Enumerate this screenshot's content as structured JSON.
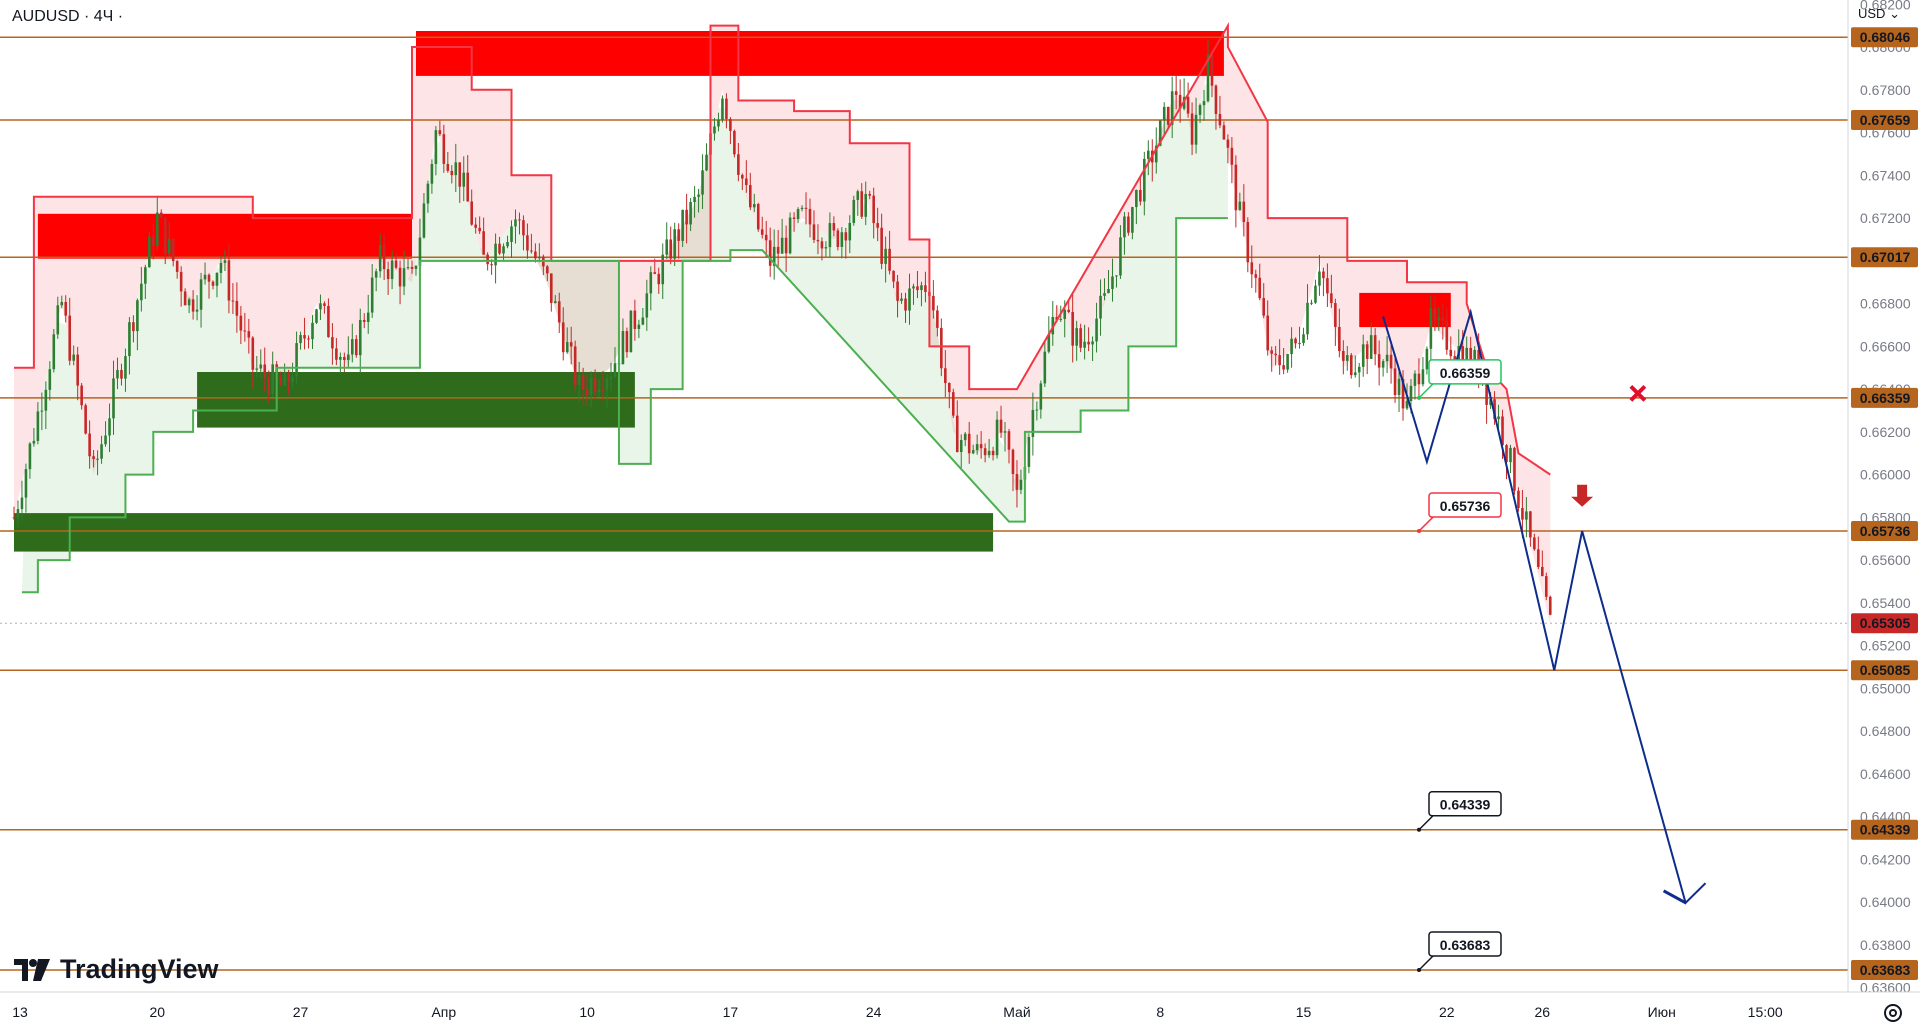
{
  "header": {
    "symbol_label": "AUDUSD · 4Ч ·",
    "currency_label": "USD"
  },
  "brand": {
    "name": "TradingView"
  },
  "colors": {
    "level_line": "#b5651d",
    "level_badge": "#b5651d",
    "supply_zone": "#ff0000",
    "demand_zone": "#2e6b1a",
    "bull_candle": "#2e7d32",
    "bear_candle": "#c62828",
    "trail_red": "#f23645",
    "trail_green": "#4caf50",
    "projection": "#0d2c8c"
  },
  "icons": {
    "settings": "gear-icon",
    "cancel_mark": "x-mark-icon",
    "sell_arrow": "down-arrow-icon"
  },
  "chart_data": {
    "type": "candlestick",
    "title": "",
    "xlabel": "",
    "ylabel": "",
    "ylim": [
      0.6358,
      0.6822
    ],
    "grid": false,
    "current_price": 0.65305,
    "price_ticks": [
      "0.68200",
      "0.68000",
      "0.67800",
      "0.67600",
      "0.67400",
      "0.67200",
      "0.67000",
      "0.66800",
      "0.66600",
      "0.66400",
      "0.66200",
      "0.66000",
      "0.65800",
      "0.65600",
      "0.65400",
      "0.65200",
      "0.65000",
      "0.64800",
      "0.64600",
      "0.64400",
      "0.64200",
      "0.64000",
      "0.63800",
      "0.63600"
    ],
    "time_ticks": [
      {
        "label": "13",
        "bar": 0
      },
      {
        "label": "20",
        "bar": 36
      },
      {
        "label": "27",
        "bar": 72
      },
      {
        "label": "Апр",
        "bar": 108
      },
      {
        "label": "10",
        "bar": 144
      },
      {
        "label": "17",
        "bar": 180
      },
      {
        "label": "24",
        "bar": 216
      },
      {
        "label": "Май",
        "bar": 252
      },
      {
        "label": "8",
        "bar": 288
      },
      {
        "label": "15",
        "bar": 324
      },
      {
        "label": "22",
        "bar": 360
      },
      {
        "label": "26",
        "bar": 384
      },
      {
        "label": "Июн",
        "bar": 414
      },
      {
        "label": "15:00",
        "bar": 440
      }
    ],
    "levels": [
      {
        "label": "0.68046",
        "value": 0.68046
      },
      {
        "label": "0.67659",
        "value": 0.67659
      },
      {
        "label": "0.67017",
        "value": 0.67017
      },
      {
        "label": "0.66359",
        "value": 0.66359
      },
      {
        "label": "0.65736",
        "value": 0.65736
      },
      {
        "label": "0.65085",
        "value": 0.65085
      },
      {
        "label": "0.64339",
        "value": 0.64339
      },
      {
        "label": "0.63683",
        "value": 0.63683
      }
    ],
    "current_label": "0.65305",
    "callouts": [
      {
        "label": "0.66359",
        "value": 0.66359,
        "style": "green"
      },
      {
        "label": "0.65736",
        "value": 0.65736,
        "style": "red"
      },
      {
        "label": "0.64339",
        "value": 0.64339,
        "style": "black"
      },
      {
        "label": "0.63683",
        "value": 0.63683,
        "style": "black"
      }
    ],
    "zones": [
      {
        "kind": "supply",
        "bar_from": 101,
        "bar_to": 304,
        "y_from": 0.67865,
        "y_to": 0.68075
      },
      {
        "kind": "supply",
        "bar_from": 6,
        "bar_to": 100,
        "y_from": 0.6701,
        "y_to": 0.6722
      },
      {
        "kind": "supply",
        "bar_from": 338,
        "bar_to": 361,
        "y_from": 0.6669,
        "y_to": 0.6685
      },
      {
        "kind": "demand",
        "bar_from": 46,
        "bar_to": 156,
        "y_from": 0.6622,
        "y_to": 0.6648
      },
      {
        "kind": "demand",
        "bar_from": 0,
        "bar_to": 246,
        "y_from": 0.6564,
        "y_to": 0.6582
      }
    ],
    "close_anchors": [
      [
        0,
        0.658
      ],
      [
        5,
        0.662
      ],
      [
        12,
        0.668
      ],
      [
        20,
        0.66
      ],
      [
        28,
        0.666
      ],
      [
        36,
        0.672
      ],
      [
        44,
        0.668
      ],
      [
        52,
        0.67
      ],
      [
        60,
        0.665
      ],
      [
        68,
        0.664
      ],
      [
        76,
        0.668
      ],
      [
        84,
        0.665
      ],
      [
        92,
        0.67
      ],
      [
        100,
        0.669
      ],
      [
        106,
        0.676
      ],
      [
        112,
        0.674
      ],
      [
        118,
        0.67
      ],
      [
        126,
        0.672
      ],
      [
        134,
        0.669
      ],
      [
        142,
        0.664
      ],
      [
        150,
        0.665
      ],
      [
        158,
        0.668
      ],
      [
        166,
        0.671
      ],
      [
        172,
        0.673
      ],
      [
        178,
        0.678
      ],
      [
        184,
        0.673
      ],
      [
        190,
        0.67
      ],
      [
        198,
        0.672
      ],
      [
        206,
        0.671
      ],
      [
        214,
        0.673
      ],
      [
        222,
        0.668
      ],
      [
        230,
        0.669
      ],
      [
        236,
        0.662
      ],
      [
        242,
        0.661
      ],
      [
        248,
        0.662
      ],
      [
        252,
        0.659
      ],
      [
        256,
        0.663
      ],
      [
        262,
        0.668
      ],
      [
        268,
        0.666
      ],
      [
        274,
        0.668
      ],
      [
        280,
        0.672
      ],
      [
        286,
        0.675
      ],
      [
        292,
        0.678
      ],
      [
        296,
        0.676
      ],
      [
        300,
        0.679
      ],
      [
        304,
        0.676
      ],
      [
        308,
        0.672
      ],
      [
        312,
        0.669
      ],
      [
        316,
        0.665
      ],
      [
        322,
        0.666
      ],
      [
        328,
        0.67
      ],
      [
        334,
        0.665
      ],
      [
        340,
        0.666
      ],
      [
        346,
        0.665
      ],
      [
        350,
        0.663
      ],
      [
        356,
        0.667
      ],
      [
        362,
        0.666
      ],
      [
        368,
        0.665
      ],
      [
        374,
        0.662
      ],
      [
        378,
        0.659
      ],
      [
        382,
        0.656
      ],
      [
        386,
        0.653
      ]
    ],
    "trail_red": [
      [
        0,
        0.665
      ],
      [
        5,
        0.665
      ],
      [
        5,
        0.673
      ],
      [
        60,
        0.673
      ],
      [
        60,
        0.672
      ],
      [
        100,
        0.672
      ],
      [
        100,
        0.68
      ],
      [
        115,
        0.68
      ],
      [
        115,
        0.678
      ],
      [
        125,
        0.678
      ],
      [
        125,
        0.674
      ],
      [
        135,
        0.674
      ],
      [
        135,
        0.67
      ],
      [
        150,
        0.67
      ],
      [
        150,
        0.67
      ],
      [
        175,
        0.67
      ],
      [
        175,
        0.681
      ],
      [
        182,
        0.681
      ],
      [
        182,
        0.6775
      ],
      [
        196,
        0.6775
      ],
      [
        196,
        0.677
      ],
      [
        210,
        0.677
      ],
      [
        210,
        0.6755
      ],
      [
        225,
        0.6755
      ],
      [
        225,
        0.671
      ],
      [
        230,
        0.671
      ],
      [
        230,
        0.666
      ],
      [
        240,
        0.666
      ],
      [
        240,
        0.664
      ],
      [
        252,
        0.664
      ],
      [
        305,
        0.681
      ],
      [
        305,
        0.68
      ],
      [
        315,
        0.6765
      ],
      [
        315,
        0.672
      ],
      [
        335,
        0.672
      ],
      [
        335,
        0.67
      ],
      [
        350,
        0.67
      ],
      [
        350,
        0.669
      ],
      [
        365,
        0.669
      ],
      [
        365,
        0.668
      ],
      [
        370,
        0.665
      ],
      [
        375,
        0.664
      ],
      [
        378,
        0.661
      ],
      [
        386,
        0.66
      ]
    ],
    "trail_green": [
      [
        2,
        0.6545
      ],
      [
        6,
        0.6545
      ],
      [
        6,
        0.656
      ],
      [
        14,
        0.656
      ],
      [
        14,
        0.658
      ],
      [
        28,
        0.658
      ],
      [
        28,
        0.66
      ],
      [
        35,
        0.66
      ],
      [
        35,
        0.662
      ],
      [
        45,
        0.662
      ],
      [
        45,
        0.663
      ],
      [
        66,
        0.663
      ],
      [
        66,
        0.665
      ],
      [
        102,
        0.665
      ],
      [
        102,
        0.67
      ],
      [
        152,
        0.67
      ],
      [
        152,
        0.6605
      ],
      [
        160,
        0.6605
      ],
      [
        160,
        0.664
      ],
      [
        168,
        0.664
      ],
      [
        168,
        0.67
      ],
      [
        180,
        0.67
      ],
      [
        180,
        0.6705
      ],
      [
        188,
        0.6705
      ],
      [
        250,
        0.6578
      ],
      [
        254,
        0.6578
      ],
      [
        254,
        0.662
      ],
      [
        268,
        0.662
      ],
      [
        268,
        0.663
      ],
      [
        280,
        0.663
      ],
      [
        280,
        0.666
      ],
      [
        292,
        0.666
      ],
      [
        292,
        0.672
      ],
      [
        305,
        0.672
      ]
    ],
    "projection": [
      [
        344,
        0.6674
      ],
      [
        355,
        0.6606
      ],
      [
        366,
        0.6676
      ],
      [
        387,
        0.65085
      ],
      [
        394,
        0.65736
      ],
      [
        420,
        0.63997
      ],
      [
        425,
        0.64089
      ]
    ],
    "sell_arrow": {
      "bar": 394,
      "value": 0.6585
    },
    "cancel_mark": {
      "bar": 408,
      "value": 0.6638
    }
  }
}
